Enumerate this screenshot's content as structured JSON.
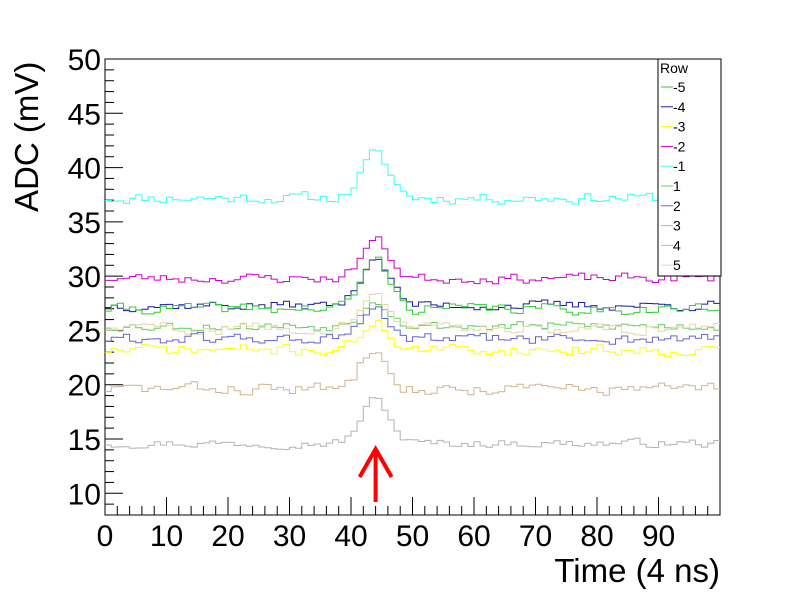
{
  "chart_data": {
    "type": "line",
    "style": "step-histogram",
    "xlabel": "Time (4 ns)",
    "ylabel": "ADC (mV)",
    "xlim": [
      0,
      100
    ],
    "ylim": [
      8,
      50
    ],
    "x_ticks": [
      0,
      10,
      20,
      30,
      40,
      50,
      60,
      70,
      80,
      90
    ],
    "y_ticks": [
      10,
      15,
      20,
      25,
      30,
      35,
      40,
      45,
      50
    ],
    "legend": {
      "title": "Row",
      "placement": "top-right",
      "entries": [
        {
          "label": "-5",
          "color": "#33cc33"
        },
        {
          "label": "-4",
          "color": "#1a1aa6"
        },
        {
          "label": "-3",
          "color": "#ffff00"
        },
        {
          "label": "-2",
          "color": "#cc00cc"
        },
        {
          "label": "-1",
          "color": "#33ffff"
        },
        {
          "label": "1",
          "color": "#66cc66"
        },
        {
          "label": "2",
          "color": "#6666cc"
        },
        {
          "label": "3",
          "color": "#b3b3b3"
        },
        {
          "label": "4",
          "color": "#d2b48c"
        },
        {
          "label": "5",
          "color": "#e6d6a6"
        }
      ]
    },
    "annotation": {
      "type": "arrow",
      "x": 44,
      "color": "#ff0000"
    },
    "series": [
      {
        "name": "-1",
        "color": "#33ffff",
        "base": 37.2,
        "noise": 0.8,
        "peak": 4.0,
        "seed": 11
      },
      {
        "name": "-2",
        "color": "#cc00cc",
        "base": 29.8,
        "noise": 0.7,
        "peak": 3.5,
        "seed": 23
      },
      {
        "name": "-4",
        "color": "#1a1aa6",
        "base": 27.3,
        "noise": 0.7,
        "peak": 4.5,
        "seed": 37
      },
      {
        "name": "-5",
        "color": "#33cc33",
        "base": 27.0,
        "noise": 0.8,
        "peak": 4.5,
        "seed": 41
      },
      {
        "name": "1",
        "color": "#66cc66",
        "base": 25.4,
        "noise": 0.7,
        "peak": 2.5,
        "seed": 53
      },
      {
        "name": "5",
        "color": "#e6d6a6",
        "base": 25.2,
        "noise": 0.8,
        "peak": 3.0,
        "seed": 59
      },
      {
        "name": "2",
        "color": "#6666cc",
        "base": 24.2,
        "noise": 0.8,
        "peak": 2.5,
        "seed": 61
      },
      {
        "name": "-3",
        "color": "#ffff00",
        "base": 23.2,
        "noise": 0.8,
        "peak": 2.5,
        "seed": 71
      },
      {
        "name": "4",
        "color": "#d2b48c",
        "base": 19.6,
        "noise": 0.9,
        "peak": 4.0,
        "seed": 83
      },
      {
        "name": "3",
        "color": "#b3b3b3",
        "base": 14.6,
        "noise": 0.6,
        "peak": 4.0,
        "seed": 97
      }
    ]
  }
}
